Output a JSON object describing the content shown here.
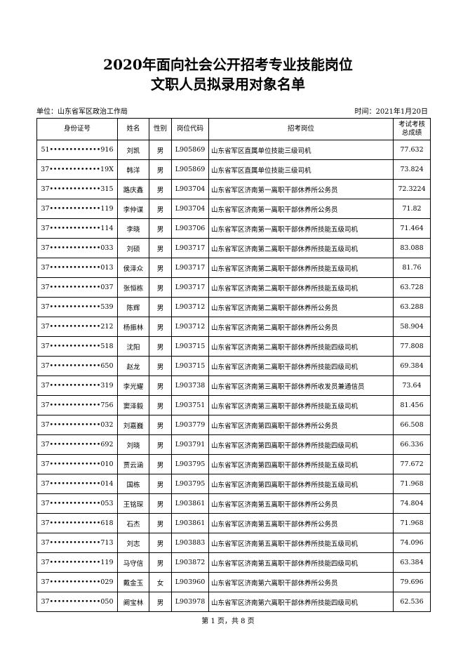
{
  "header": {
    "title": [
      "2020年面向社会公开招考专业技能岗位",
      "文职人员拟录用对象名单"
    ],
    "unit": "单位：山东省军区政治工作局",
    "date": "时间：2021年1月20日"
  },
  "table": {
    "header": [
      "身份证号",
      "姓名",
      "性别",
      "岗位代码",
      "招考岗位",
      "考试考核\n总成绩"
    ],
    "rows": [
      [
        "51•••••••••••••916",
        "刘凯",
        "男",
        "L905869",
        "山东省军区直属单位技能三级司机",
        "77.632"
      ],
      [
        "37•••••••••••••19X",
        "韩洋",
        "男",
        "L905869",
        "山东省军区直属单位技能三级司机",
        "73.824"
      ],
      [
        "37•••••••••••••315",
        "路庆鑫",
        "男",
        "L903704",
        "山东省军区济南第一离职干部休养所公务员",
        "72.3224"
      ],
      [
        "37•••••••••••••119",
        "李仲谋",
        "男",
        "L903704",
        "山东省军区济南第一离职干部休养所公务员",
        "71.82"
      ],
      [
        "37•••••••••••••114",
        "李晓",
        "男",
        "L903706",
        "山东省军区济南第一离职干部休养所技能五级司机",
        "71.464"
      ],
      [
        "37•••••••••••••033",
        "刘硕",
        "男",
        "L903717",
        "山东省军区济南第二离职干部休养所技能五级司机",
        "83.088"
      ],
      [
        "37•••••••••••••013",
        "侯泽众",
        "男",
        "L903717",
        "山东省军区济南第二离职干部休养所技能五级司机",
        "81.76"
      ],
      [
        "37•••••••••••••037",
        "张恒栋",
        "男",
        "L903717",
        "山东省军区济南第二离职干部休养所技能五级司机",
        "63.728"
      ],
      [
        "37•••••••••••••539",
        "陈辉",
        "男",
        "L903712",
        "山东省军区济南第二离职干部休养所公务员",
        "63.288"
      ],
      [
        "37•••••••••••••212",
        "杨振林",
        "男",
        "L903712",
        "山东省军区济南第二离职干部休养所公务员",
        "58.904"
      ],
      [
        "37•••••••••••••518",
        "沈阳",
        "男",
        "L903715",
        "山东省军区济南第二离职干部休养所技能四级司机",
        "77.808"
      ],
      [
        "37•••••••••••••650",
        "赵龙",
        "男",
        "L903715",
        "山东省军区济南第二离职干部休养所技能四级司机",
        "69.384"
      ],
      [
        "37•••••••••••••319",
        "李光耀",
        "男",
        "L903738",
        "山东省军区济南第三离职干部休养所收发员兼通信员",
        "73.64"
      ],
      [
        "37•••••••••••••756",
        "窦泽毅",
        "男",
        "L903751",
        "山东省军区济南第三离职干部休养所技能五级司机",
        "81.456"
      ],
      [
        "37•••••••••••••032",
        "刘嘉巍",
        "男",
        "L903779",
        "山东省军区济南第四离职干部休养所公务员",
        "66.508"
      ],
      [
        "37•••••••••••••692",
        "刘晓",
        "男",
        "L903791",
        "山东省军区济南第四离职干部休养所技能四级司机",
        "66.336"
      ],
      [
        "37•••••••••••••010",
        "贾云涵",
        "男",
        "L903795",
        "山东省军区济南第四离职干部休养所技能五级司机",
        "77.672"
      ],
      [
        "37•••••••••••••014",
        "国栋",
        "男",
        "L903795",
        "山东省军区济南第四离职干部休养所技能五级司机",
        "71.968"
      ],
      [
        "37•••••••••••••053",
        "王铭琛",
        "男",
        "L903861",
        "山东省军区济南第五离职干部休养所公务员",
        "74.804"
      ],
      [
        "37•••••••••••••618",
        "石杰",
        "男",
        "L903861",
        "山东省军区济南第五离职干部休养所公务员",
        "71.968"
      ],
      [
        "37•••••••••••••713",
        "刘志",
        "男",
        "L903883",
        "山东省军区济南第五离职干部休养所技能五级司机",
        "74.096"
      ],
      [
        "37•••••••••••••119",
        "马守信",
        "男",
        "L903872",
        "山东省军区济南第五离职干部休养所技能四级司机",
        "63.384"
      ],
      [
        "37•••••••••••••029",
        "戴金玉",
        "女",
        "L903960",
        "山东省军区济南第六离职干部休养所公务员",
        "79.696"
      ],
      [
        "37•••••••••••••050",
        "阚宝林",
        "男",
        "L903978",
        "山东省军区济南第六离职干部休养所技能四级司机",
        "62.536"
      ]
    ]
  },
  "footer": "第 1 页，共 8 页"
}
